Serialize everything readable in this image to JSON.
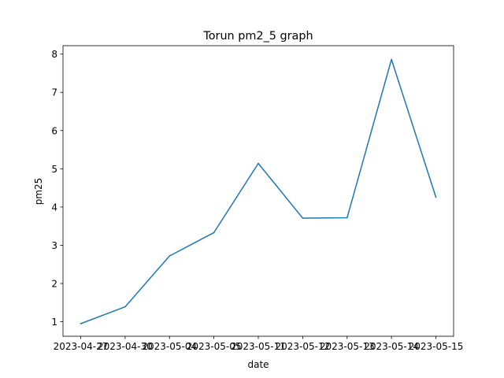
{
  "chart_data": {
    "type": "line",
    "title": "Torun pm2_5 graph",
    "xlabel": "date",
    "ylabel": "pm25",
    "x": [
      "2023-04-27",
      "2023-04-30",
      "2023-05-04",
      "2023-05-05",
      "2023-05-11",
      "2023-05-12",
      "2023-05-13",
      "2023-05-14",
      "2023-05-15"
    ],
    "series": [
      {
        "values": [
          0.95,
          1.39,
          2.72,
          3.33,
          5.14,
          3.71,
          3.72,
          7.86,
          4.26
        ]
      }
    ],
    "ylim": [
      0.62,
      8.22
    ],
    "yticks": [
      1,
      2,
      3,
      4,
      5,
      6,
      7,
      8
    ],
    "grid": false,
    "line_color": "#1f77b4"
  }
}
